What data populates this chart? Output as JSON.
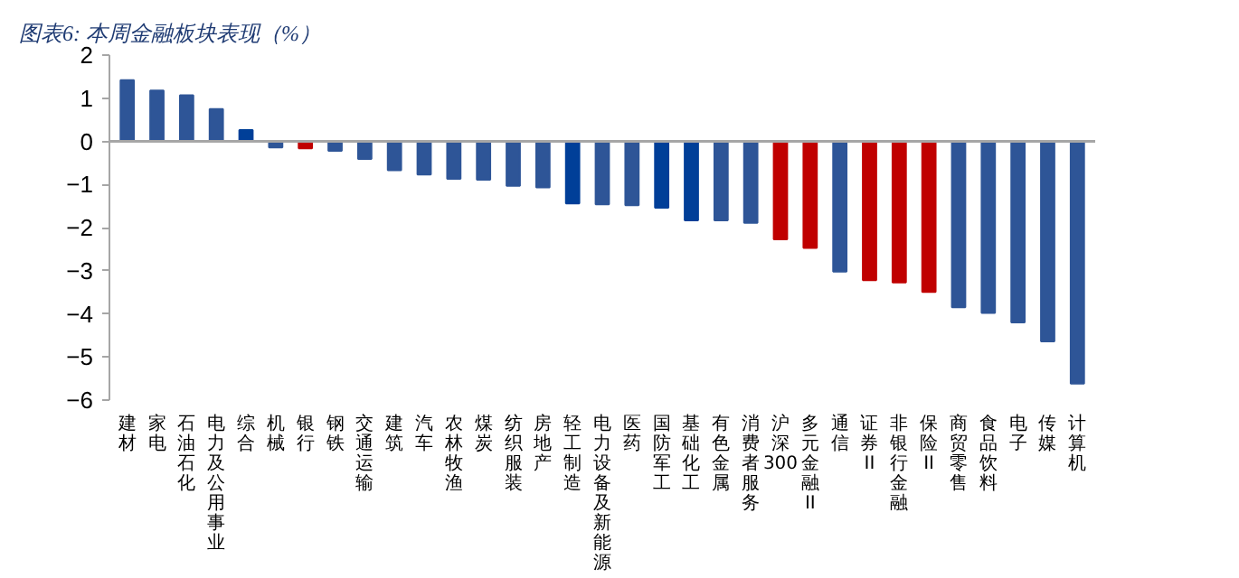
{
  "chart_data": {
    "type": "bar",
    "title": "图表6:  本周金融板块表现（%）",
    "categories": [
      "建材",
      "家电",
      "石油石化",
      "电力及公用事业",
      "综合",
      "机械",
      "银行",
      "钢铁",
      "交通运输",
      "建筑",
      "汽车",
      "农林牧渔",
      "煤炭",
      "纺织服装",
      "房地产",
      "轻工制造",
      "电力设备及新能源",
      "医药",
      "国防军工",
      "基础化工",
      "有色金属",
      "消费者服务",
      "沪深300",
      "多元金融II",
      "通信",
      "证券II",
      "非银行金融",
      "保险II",
      "商贸零售",
      "食品饮料",
      "电子",
      "传媒",
      "计算机"
    ],
    "values": [
      1.42,
      1.18,
      1.07,
      0.75,
      0.26,
      -0.14,
      -0.16,
      -0.22,
      -0.41,
      -0.67,
      -0.77,
      -0.87,
      -0.89,
      -1.03,
      -1.07,
      -1.44,
      -1.46,
      -1.48,
      -1.54,
      -1.83,
      -1.83,
      -1.89,
      -2.27,
      -2.47,
      -3.02,
      -3.22,
      -3.27,
      -3.49,
      -3.85,
      -3.98,
      -4.2,
      -4.64,
      -5.62
    ],
    "colors": [
      "#2e5597",
      "#2e5597",
      "#2e5597",
      "#2e5597",
      "#003f98",
      "#2e5597",
      "#c00000",
      "#2e5597",
      "#2e5597",
      "#2e5597",
      "#2e5597",
      "#2e5597",
      "#2e5597",
      "#2e5597",
      "#2e5597",
      "#003f98",
      "#2e5597",
      "#2e5597",
      "#003f98",
      "#003f98",
      "#2e5597",
      "#2e5597",
      "#c00000",
      "#c00000",
      "#2e5597",
      "#c00000",
      "#c00000",
      "#c00000",
      "#2e5597",
      "#2e5597",
      "#2e5597",
      "#2e5597",
      "#2e5597"
    ],
    "ylim": [
      -6,
      2
    ],
    "yticks": [
      -6,
      -5,
      -4,
      -3,
      -2,
      -1,
      0,
      1,
      2
    ]
  }
}
